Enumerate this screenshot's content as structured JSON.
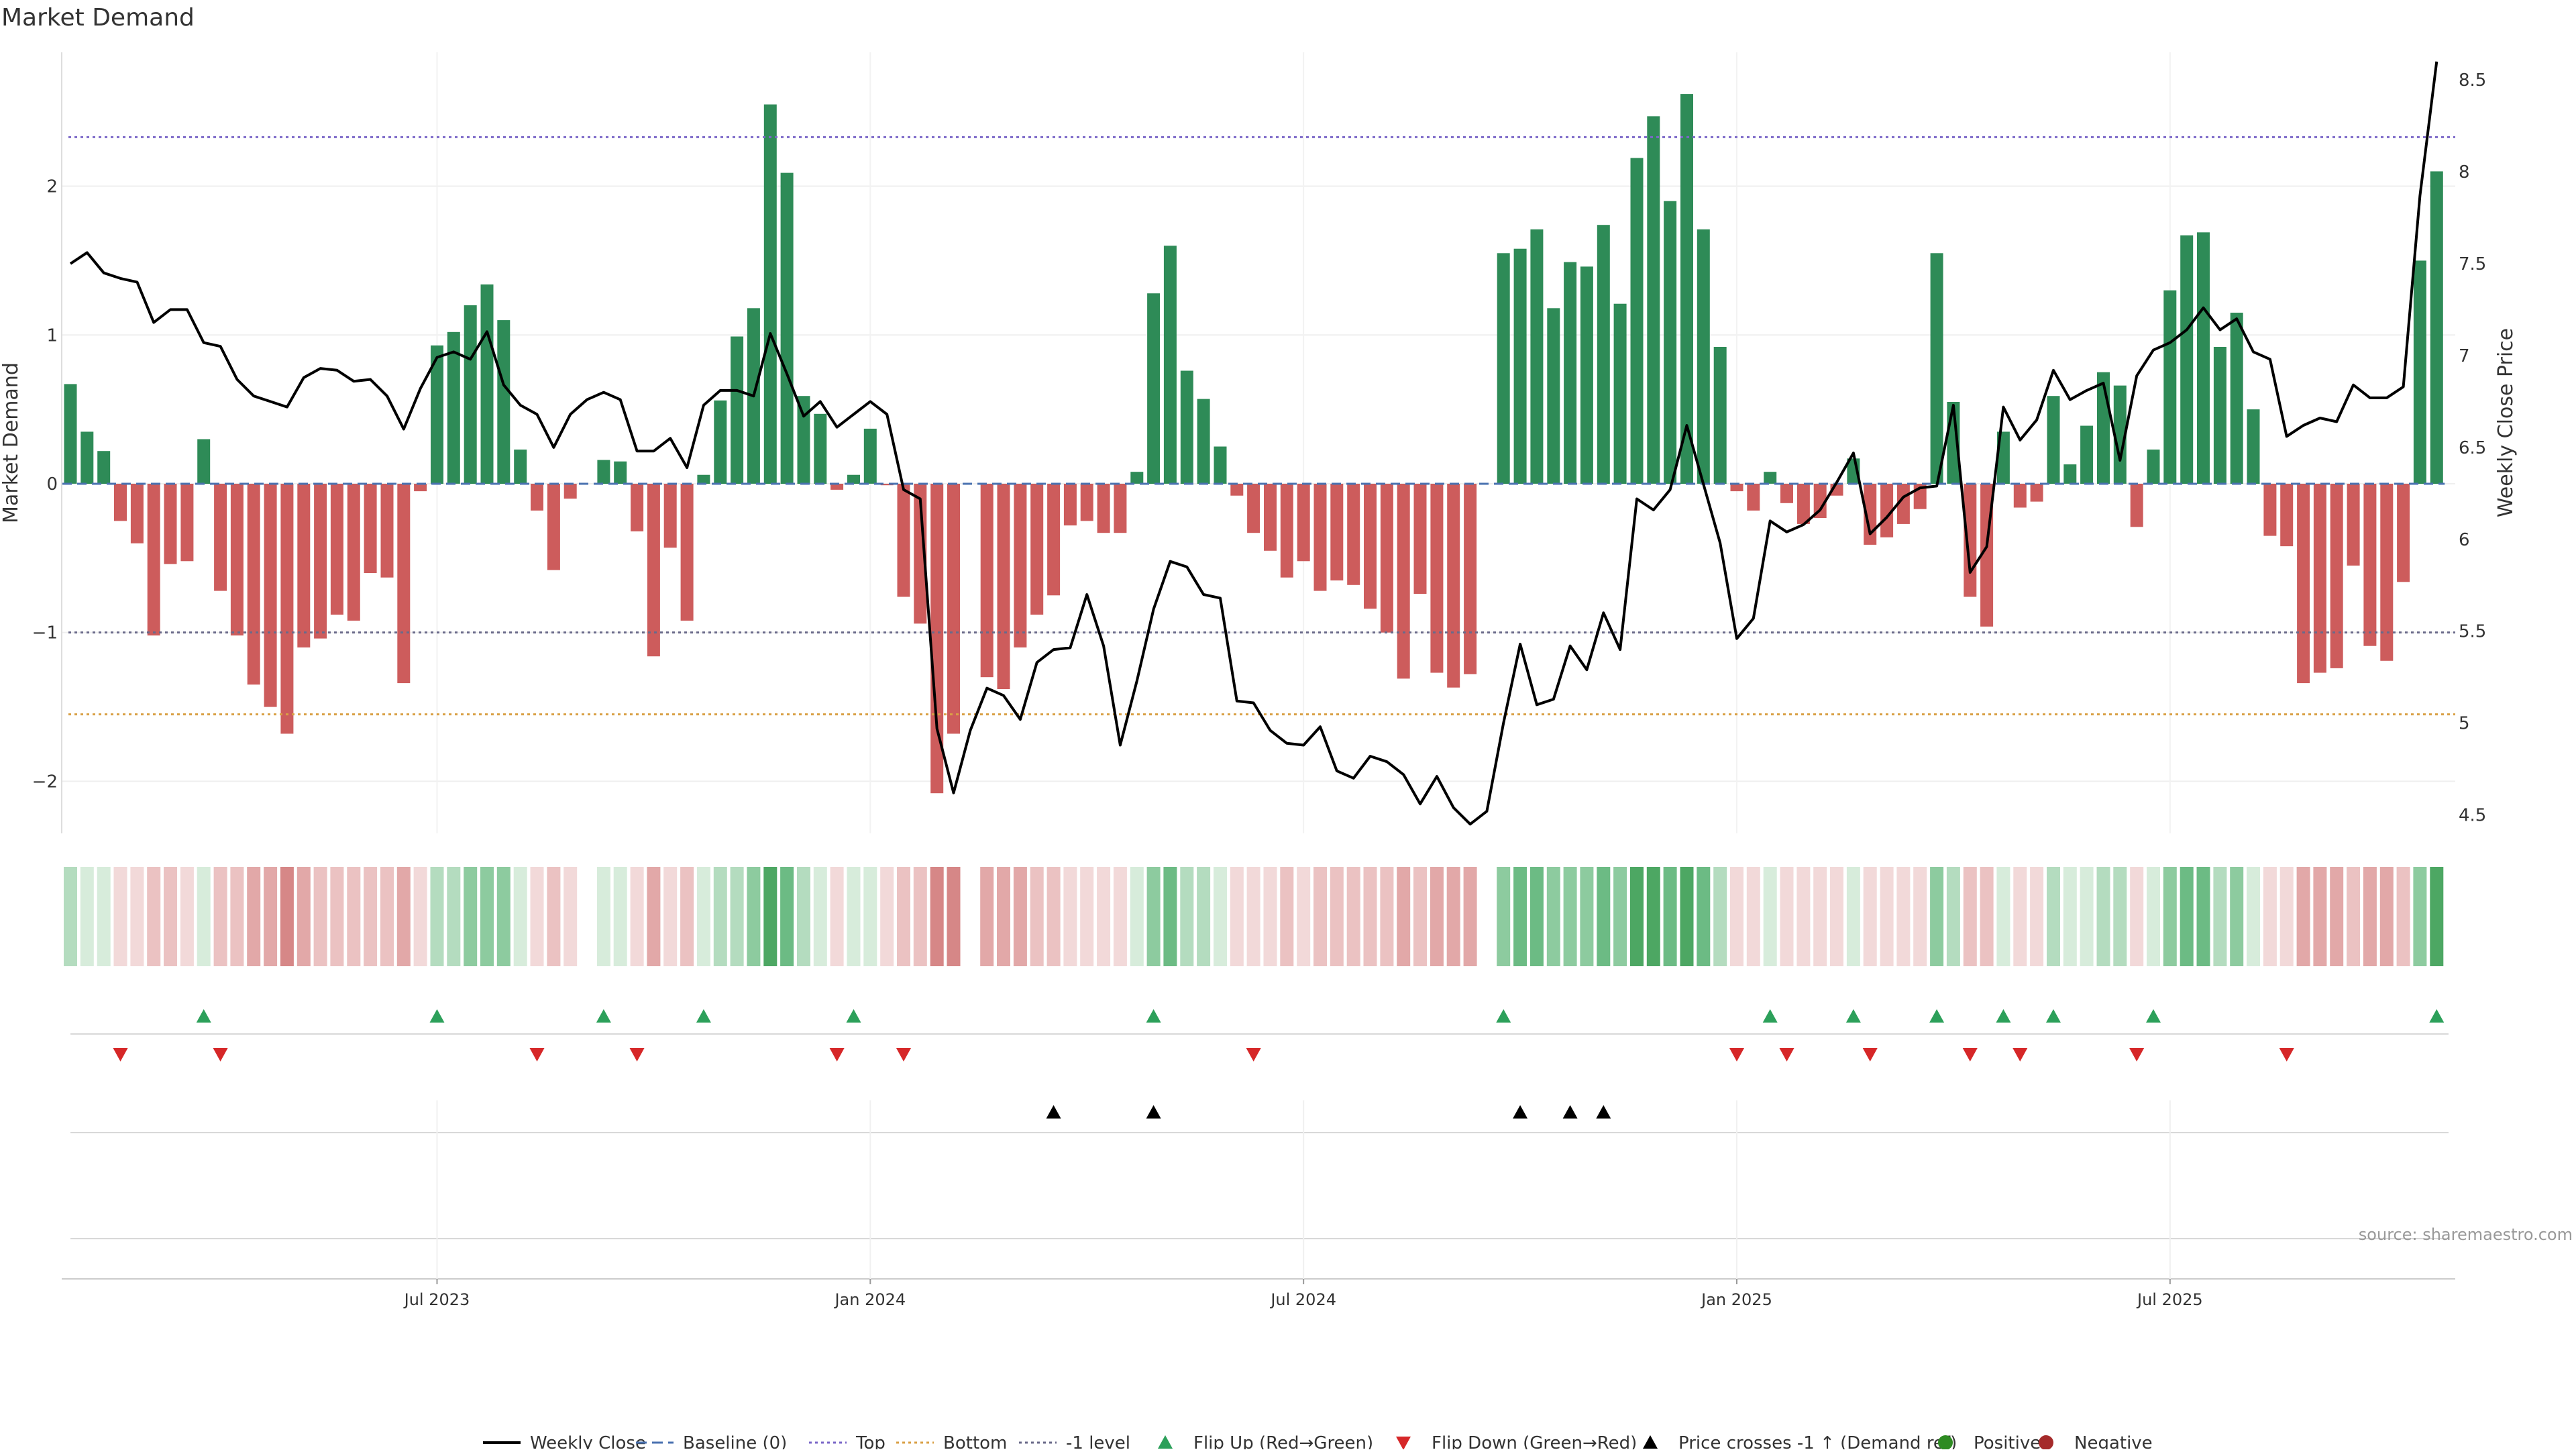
{
  "chart_data": {
    "type": "bar",
    "title": "Market Demand",
    "ylabel_left": "Market Demand",
    "ylabel_right": "Weekly Close Price",
    "source": "source: sharemaestro.com",
    "ylim_left": [
      -2.35,
      2.9
    ],
    "ylim_right": [
      4.4,
      8.65
    ],
    "left_ticks": [
      {
        "v": 2,
        "label": "2"
      },
      {
        "v": 1,
        "label": "1"
      },
      {
        "v": 0,
        "label": "0"
      },
      {
        "v": -1,
        "label": "−1"
      },
      {
        "v": -2,
        "label": "−2"
      }
    ],
    "right_ticks": [
      {
        "v": 8.5,
        "label": "8.5"
      },
      {
        "v": 8,
        "label": "8"
      },
      {
        "v": 7.5,
        "label": "7.5"
      },
      {
        "v": 7,
        "label": "7"
      },
      {
        "v": 6.5,
        "label": "6.5"
      },
      {
        "v": 6,
        "label": "6"
      },
      {
        "v": 5.5,
        "label": "5.5"
      },
      {
        "v": 5,
        "label": "5"
      },
      {
        "v": 4.5,
        "label": "4.5"
      }
    ],
    "x_ticks": [
      {
        "i": 22,
        "label": "Jul 2023"
      },
      {
        "i": 48,
        "label": "Jan 2024"
      },
      {
        "i": 74,
        "label": "Jul 2024"
      },
      {
        "i": 100,
        "label": "Jan 2025"
      },
      {
        "i": 126,
        "label": "Jul 2025"
      }
    ],
    "reference_lines": [
      {
        "name": "Top",
        "value": 2.33,
        "color": "#7b68c8"
      },
      {
        "name": "-1 level",
        "value": -1.0,
        "color": "#6a6a8a"
      },
      {
        "name": "Bottom",
        "value": -1.55,
        "color": "#d9a046"
      }
    ],
    "positive_color": "#2e8b57",
    "negative_color": "#cd5c5c",
    "price_color": "#000000",
    "demand": [
      0.67,
      0.35,
      0.22,
      -0.25,
      -0.4,
      -1.02,
      -0.54,
      -0.52,
      0.3,
      -0.72,
      -1.02,
      -1.35,
      -1.5,
      -1.68,
      -1.1,
      -1.04,
      -0.88,
      -0.92,
      -0.6,
      -0.63,
      -1.34,
      -0.05,
      0.93,
      1.02,
      1.2,
      1.34,
      1.1,
      0.23,
      -0.18,
      -0.58,
      -0.1,
      0.0,
      0.16,
      0.15,
      -0.32,
      -1.16,
      -0.43,
      -0.92,
      0.06,
      0.56,
      0.99,
      1.18,
      2.55,
      2.09,
      0.59,
      0.47,
      -0.04,
      0.06,
      0.37,
      -0.01,
      -0.76,
      -0.94,
      -2.08,
      -1.68,
      0.0,
      -1.3,
      -1.38,
      -1.1,
      -0.88,
      -0.75,
      -0.28,
      -0.25,
      -0.33,
      -0.33,
      0.08,
      1.28,
      1.6,
      0.76,
      0.57,
      0.25,
      -0.08,
      -0.33,
      -0.45,
      -0.63,
      -0.52,
      -0.72,
      -0.65,
      -0.68,
      -0.84,
      -1.0,
      -1.31,
      -0.74,
      -1.27,
      -1.37,
      -1.28,
      0.0,
      1.55,
      1.58,
      1.71,
      1.18,
      1.49,
      1.46,
      1.74,
      1.21,
      2.19,
      2.47,
      1.9,
      2.62,
      1.71,
      0.92,
      -0.05,
      -0.18,
      0.08,
      -0.13,
      -0.27,
      -0.23,
      -0.08,
      0.17,
      -0.41,
      -0.36,
      -0.27,
      -0.17,
      1.55,
      0.55,
      -0.76,
      -0.96,
      0.35,
      -0.16,
      -0.12,
      0.59,
      0.13,
      0.39,
      0.75,
      0.66,
      -0.29,
      0.23,
      1.3,
      1.67,
      1.69,
      0.92,
      1.15,
      0.5,
      -0.35,
      -0.42,
      -1.34,
      -1.27,
      -1.24,
      -0.55,
      -1.09,
      -1.19,
      -0.66,
      1.5,
      2.1
    ],
    "price": [
      7.5,
      7.56,
      7.45,
      7.42,
      7.4,
      7.18,
      7.25,
      7.25,
      7.07,
      7.05,
      6.87,
      6.78,
      6.75,
      6.72,
      6.88,
      6.93,
      6.92,
      6.86,
      6.87,
      6.78,
      6.6,
      6.82,
      6.99,
      7.02,
      6.98,
      7.13,
      6.84,
      6.73,
      6.68,
      6.5,
      6.68,
      6.76,
      6.8,
      6.76,
      6.48,
      6.48,
      6.55,
      6.39,
      6.73,
      6.81,
      6.81,
      6.78,
      7.12,
      6.9,
      6.67,
      6.75,
      6.61,
      6.68,
      6.75,
      6.68,
      6.27,
      6.22,
      4.97,
      4.62,
      4.96,
      5.19,
      5.15,
      5.02,
      5.33,
      5.4,
      5.41,
      5.7,
      5.42,
      4.88,
      5.23,
      5.62,
      5.88,
      5.85,
      5.7,
      5.68,
      5.12,
      5.11,
      4.96,
      4.89,
      4.88,
      4.98,
      4.74,
      4.7,
      4.82,
      4.79,
      4.72,
      4.56,
      4.71,
      4.54,
      4.45,
      4.52,
      5.0,
      5.43,
      5.1,
      5.13,
      5.42,
      5.29,
      5.6,
      5.4,
      6.22,
      6.16,
      6.27,
      6.62,
      6.3,
      5.98,
      5.46,
      5.57,
      6.1,
      6.04,
      6.08,
      6.16,
      6.31,
      6.47,
      6.03,
      6.12,
      6.23,
      6.28,
      6.29,
      6.73,
      5.82,
      5.96,
      6.72,
      6.54,
      6.65,
      6.92,
      6.76,
      6.81,
      6.85,
      6.43,
      6.89,
      7.03,
      7.07,
      7.14,
      7.26,
      7.14,
      7.2,
      7.02,
      6.98,
      6.56,
      6.62,
      6.66,
      6.64,
      6.84,
      6.77,
      6.77,
      6.83,
      7.87,
      8.6
    ],
    "heat_band_colors": {
      "positive": [
        "#d7ecdb",
        "#b4dcbf",
        "#8dcb9f",
        "#6cbb84",
        "#4da763"
      ],
      "negative": [
        "#f2d9d9",
        "#ebc2c2",
        "#e2a8a8",
        "#d68787",
        "#c76c6c"
      ]
    },
    "flip_up": [
      8,
      22,
      32,
      38,
      47,
      65,
      86,
      102,
      107,
      112,
      116,
      119,
      125,
      142
    ],
    "flip_down": [
      3,
      9,
      28,
      34,
      46,
      50,
      71,
      100,
      103,
      108,
      114,
      117,
      124,
      133
    ],
    "price_cross": [
      59,
      65,
      87,
      90,
      92
    ],
    "legend": [
      {
        "label": "Weekly Close",
        "kind": "line",
        "color": "#000000"
      },
      {
        "label": "Baseline (0)",
        "kind": "dash",
        "color": "#4a72b0"
      },
      {
        "label": "Top",
        "kind": "dots",
        "color": "#7b68c8"
      },
      {
        "label": "Bottom",
        "kind": "dots",
        "color": "#d9a046"
      },
      {
        "label": "-1 level",
        "kind": "dots",
        "color": "#6a6a8a"
      },
      {
        "label": "Flip Up (Red→Green)",
        "kind": "tri-up",
        "color": "#2ca05a"
      },
      {
        "label": "Flip Down (Green→Red)",
        "kind": "tri-down",
        "color": "#d62728"
      },
      {
        "label": "Price crosses -1 ↑ (Demand ref)",
        "kind": "tri-up",
        "color": "#000000"
      },
      {
        "label": "Positive",
        "kind": "dot",
        "color": "#2e8b22"
      },
      {
        "label": "Negative",
        "kind": "dot",
        "color": "#a52a2a"
      }
    ]
  }
}
